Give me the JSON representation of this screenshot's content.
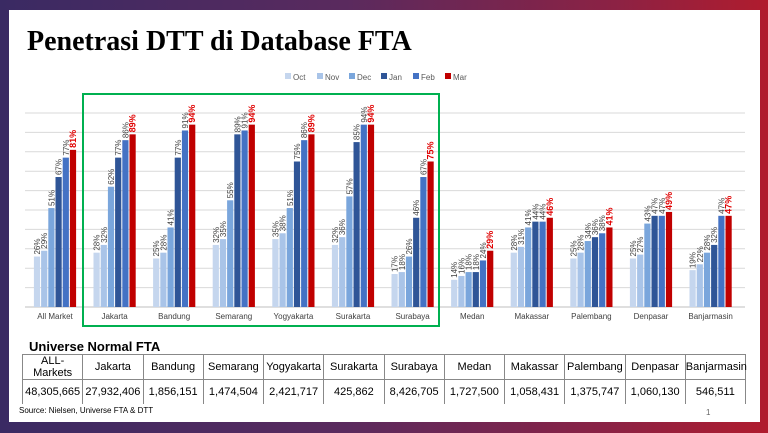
{
  "title": "Penetrasi DTT di Database FTA",
  "chart_data": {
    "type": "bar",
    "title": "",
    "xlabel": "",
    "ylabel": "",
    "ylim": [
      0,
      100
    ],
    "grid": true,
    "legend_position": "top-right",
    "categories": [
      "All Market",
      "Jakarta",
      "Bandung",
      "Semarang",
      "Yogyakarta",
      "Surakarta",
      "Surabaya",
      "Medan",
      "Makassar",
      "Palembang",
      "Denpasar",
      "Banjarmasin"
    ],
    "series": [
      {
        "name": "Oct",
        "color": "#c5d6ee",
        "values": [
          26,
          28,
          25,
          32,
          35,
          32,
          17,
          14,
          28,
          25,
          25,
          19
        ]
      },
      {
        "name": "Nov",
        "color": "#a9c4e8",
        "values": [
          29,
          32,
          28,
          35,
          38,
          36,
          18,
          16,
          31,
          28,
          27,
          22
        ]
      },
      {
        "name": "Dec",
        "color": "#7aa6dc",
        "values": [
          51,
          62,
          41,
          55,
          51,
          57,
          26,
          18,
          41,
          34,
          43,
          28
        ]
      },
      {
        "name": "Jan",
        "color": "#2f5597",
        "values": [
          67,
          77,
          77,
          89,
          75,
          85,
          46,
          18,
          44,
          36,
          47,
          32
        ]
      },
      {
        "name": "Feb",
        "color": "#4472c4",
        "values": [
          77,
          86,
          91,
          91,
          86,
          94,
          67,
          24,
          44,
          38,
          47,
          47
        ]
      },
      {
        "name": "Mar",
        "color": "#c00000",
        "values": [
          81,
          89,
          94,
          94,
          89,
          94,
          75,
          29,
          46,
          41,
          49,
          47
        ]
      }
    ],
    "highlight": {
      "box_color": "#00b050",
      "categories": [
        "Jakarta",
        "Bandung",
        "Semarang",
        "Yogyakarta",
        "Surakarta",
        "Surabaya"
      ]
    }
  },
  "universe": {
    "title": "Universe Normal FTA",
    "headers": [
      "ALL-Markets",
      "Jakarta",
      "Bandung",
      "Semarang",
      "Yogyakarta",
      "Surakarta",
      "Surabaya",
      "Medan",
      "Makassar",
      "Palembang",
      "Denpasar",
      "Banjarmasin"
    ],
    "values": [
      "48,305,665",
      "27,932,406",
      "1,856,151",
      "1,474,504",
      "2,421,717",
      "425,862",
      "8,426,705",
      "1,727,500",
      "1,058,431",
      "1,375,747",
      "1,060,130",
      "546,511"
    ]
  },
  "source": "Source: Nielsen, Universe FTA & DTT",
  "page_number": "1"
}
